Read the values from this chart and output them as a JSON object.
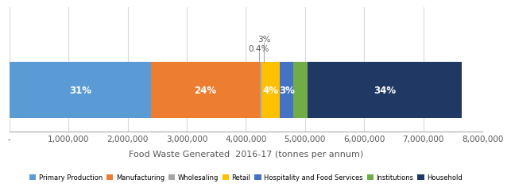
{
  "segments": [
    {
      "name": "Primary Production",
      "value": 2388000,
      "pct": "31%",
      "color": "#5B9BD5",
      "show_label": true
    },
    {
      "name": "Manufacturing",
      "value": 1848000,
      "pct": "24%",
      "color": "#ED7D31",
      "show_label": true
    },
    {
      "name": "Wholesaling",
      "value": 31000,
      "pct": "0.4%",
      "color": "#A5A5A5",
      "show_label": false
    },
    {
      "name": "Retail",
      "value": 308000,
      "pct": "4%",
      "color": "#FFC000",
      "show_label": true
    },
    {
      "name": "Hospitality and Food Services",
      "value": 231000,
      "pct": "3%",
      "color": "#4472C4",
      "show_label": true
    },
    {
      "name": "Institutions",
      "value": 231000,
      "pct": "3%",
      "color": "#70AD47",
      "show_label": false
    },
    {
      "name": "Household",
      "value": 2618000,
      "pct": "34%",
      "color": "#1F3864",
      "show_label": true
    }
  ],
  "xlabel": "Food Waste Generated  2016-17 (tonnes per annum)",
  "xlim": [
    0,
    8000000
  ],
  "xticks": [
    0,
    1000000,
    2000000,
    3000000,
    4000000,
    5000000,
    6000000,
    7000000,
    8000000
  ],
  "xtick_labels": [
    "-",
    "1,000,000",
    "2,000,000",
    "3,000,000",
    "4,000,000",
    "5,000,000",
    "6,000,000",
    "7,000,000",
    "8,000,000"
  ],
  "figure_facecolor": "#FFFFFF",
  "grid_color": "#D9D9D9",
  "annot_3pct_text": "3%",
  "annot_04pct_text": "0.4%",
  "annot_color": "#595959"
}
